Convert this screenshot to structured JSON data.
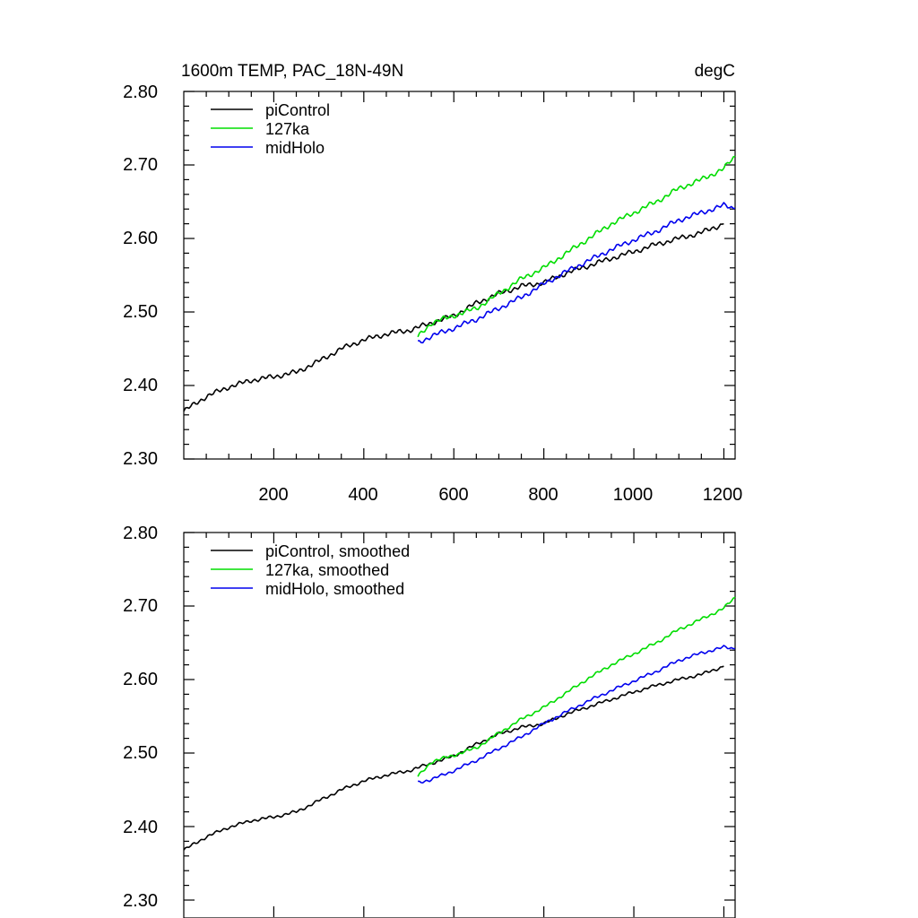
{
  "chart_data": [
    {
      "type": "line",
      "title_left": "1600m TEMP, PAC_18N-49N",
      "title_right": "degC",
      "xlim": [
        0,
        1225
      ],
      "ylim": [
        2.3,
        2.8
      ],
      "y_ticks": [
        "2.30",
        "2.40",
        "2.50",
        "2.60",
        "2.70",
        "2.80"
      ],
      "x_ticks": [
        "200",
        "400",
        "600",
        "800",
        "1000",
        "1200"
      ],
      "legend": [
        "piControl",
        "127ka",
        "midHolo"
      ],
      "series": [
        {
          "name": "piControl",
          "color": "#000000",
          "x": [
            0,
            50,
            100,
            150,
            200,
            250,
            300,
            350,
            400,
            450,
            500,
            550,
            600,
            650,
            700,
            750,
            800,
            850,
            900,
            950,
            1000,
            1050,
            1100,
            1150,
            1200
          ],
          "y": [
            2.365,
            2.385,
            2.398,
            2.407,
            2.412,
            2.418,
            2.433,
            2.45,
            2.462,
            2.47,
            2.475,
            2.485,
            2.495,
            2.512,
            2.525,
            2.535,
            2.54,
            2.553,
            2.563,
            2.573,
            2.582,
            2.592,
            2.6,
            2.608,
            2.62
          ]
        },
        {
          "name": "127ka",
          "color": "#00dd00",
          "x": [
            520,
            550,
            600,
            650,
            700,
            750,
            800,
            850,
            900,
            950,
            1000,
            1050,
            1100,
            1150,
            1200,
            1225
          ],
          "y": [
            2.466,
            2.485,
            2.495,
            2.505,
            2.525,
            2.545,
            2.56,
            2.58,
            2.6,
            2.62,
            2.635,
            2.65,
            2.668,
            2.68,
            2.695,
            2.712
          ]
        },
        {
          "name": "midHolo",
          "color": "#0000ee",
          "x": [
            520,
            550,
            600,
            650,
            700,
            750,
            800,
            850,
            900,
            950,
            1000,
            1050,
            1100,
            1150,
            1200,
            1225
          ],
          "y": [
            2.458,
            2.467,
            2.478,
            2.49,
            2.505,
            2.52,
            2.538,
            2.555,
            2.57,
            2.585,
            2.598,
            2.61,
            2.625,
            2.635,
            2.645,
            2.641
          ]
        }
      ]
    },
    {
      "type": "line",
      "xlim": [
        0,
        1225
      ],
      "ylim": [
        2.3,
        2.8
      ],
      "y_ticks": [
        "2.30",
        "2.40",
        "2.50",
        "2.60",
        "2.70",
        "2.80"
      ],
      "legend": [
        "piControl, smoothed",
        "127ka, smoothed",
        "midHolo, smoothed"
      ],
      "series": [
        {
          "name": "piControl, smoothed",
          "color": "#000000",
          "x": [
            0,
            50,
            100,
            150,
            200,
            250,
            300,
            350,
            400,
            450,
            500,
            550,
            600,
            650,
            700,
            750,
            800,
            850,
            900,
            950,
            1000,
            1050,
            1100,
            1150,
            1200
          ],
          "y": [
            2.368,
            2.386,
            2.399,
            2.408,
            2.413,
            2.42,
            2.435,
            2.45,
            2.462,
            2.47,
            2.476,
            2.486,
            2.496,
            2.512,
            2.526,
            2.535,
            2.54,
            2.553,
            2.563,
            2.573,
            2.583,
            2.592,
            2.6,
            2.607,
            2.618
          ]
        },
        {
          "name": "127ka, smoothed",
          "color": "#00dd00",
          "x": [
            520,
            550,
            600,
            650,
            700,
            750,
            800,
            850,
            900,
            950,
            1000,
            1050,
            1100,
            1150,
            1200,
            1225
          ],
          "y": [
            2.468,
            2.488,
            2.497,
            2.507,
            2.527,
            2.546,
            2.562,
            2.582,
            2.602,
            2.62,
            2.635,
            2.65,
            2.668,
            2.682,
            2.697,
            2.712
          ]
        },
        {
          "name": "midHolo, smoothed",
          "color": "#0000ee",
          "x": [
            520,
            550,
            600,
            650,
            700,
            750,
            800,
            850,
            900,
            950,
            1000,
            1050,
            1100,
            1150,
            1200,
            1225
          ],
          "y": [
            2.46,
            2.464,
            2.476,
            2.49,
            2.506,
            2.522,
            2.54,
            2.556,
            2.571,
            2.585,
            2.598,
            2.611,
            2.626,
            2.636,
            2.644,
            2.642
          ]
        }
      ]
    }
  ]
}
